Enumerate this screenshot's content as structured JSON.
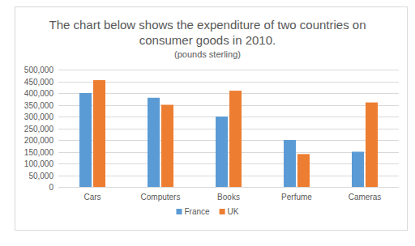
{
  "chart_data": {
    "type": "bar",
    "title": "The chart below shows the expenditure of two countries on consumer goods in 2010.",
    "subtitle": "(pounds sterling)",
    "categories": [
      "Cars",
      "Computers",
      "Books",
      "Perfume",
      "Cameras"
    ],
    "series": [
      {
        "name": "France",
        "color": "#5b9bd5",
        "values": [
          400000,
          380000,
          300000,
          200000,
          150000
        ]
      },
      {
        "name": "UK",
        "color": "#ed7d31",
        "values": [
          455000,
          350000,
          410000,
          140000,
          360000
        ]
      }
    ],
    "ylim": [
      0,
      500000
    ],
    "yticks": [
      0,
      {
        "value": 50000,
        "label": "50,000"
      },
      {
        "value": 100000,
        "label": "100,000"
      },
      {
        "value": 150000,
        "label": "150,000"
      },
      {
        "value": 200000,
        "label": "200,000"
      },
      {
        "value": 250000,
        "label": "250,000"
      },
      {
        "value": 300000,
        "label": "300,000"
      },
      {
        "value": 350000,
        "label": "350,000"
      },
      {
        "value": 400000,
        "label": "400,000"
      },
      {
        "value": 450000,
        "label": "450,000"
      },
      {
        "value": 500000,
        "label": "500,000"
      }
    ],
    "grid": true,
    "legend": "bottom"
  }
}
